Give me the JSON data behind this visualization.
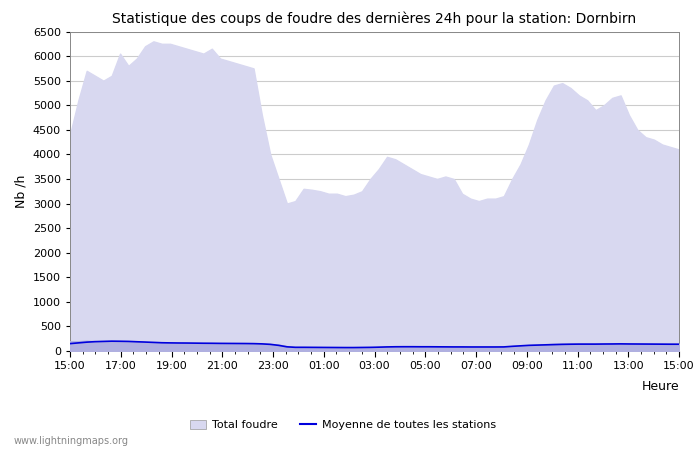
{
  "title": "Statistique des coups de foudre des dernières 24h pour la station: Dornbirn",
  "xlabel": "Heure",
  "ylabel": "Nb /h",
  "ylim": [
    0,
    6500
  ],
  "yticks": [
    0,
    500,
    1000,
    1500,
    2000,
    2500,
    3000,
    3500,
    4000,
    4500,
    5000,
    5500,
    6000,
    6500
  ],
  "xtick_labels": [
    "15:00",
    "17:00",
    "19:00",
    "21:00",
    "23:00",
    "01:00",
    "03:00",
    "05:00",
    "07:00",
    "09:00",
    "11:00",
    "13:00",
    "15:00"
  ],
  "fill_color_total": "#d8d8f0",
  "fill_color_dornbirn": "#b0b0e0",
  "line_color_moyenne": "#0000dd",
  "background_color": "#ffffff",
  "grid_color": "#cccccc",
  "watermark": "www.lightningmaps.org",
  "legend_total": "Total foudre",
  "legend_moyenne": "Moyenne de toutes les stations",
  "total_foudre": [
    4400,
    5100,
    5700,
    5600,
    5500,
    5600,
    6050,
    5800,
    5950,
    6200,
    6300,
    6250,
    6250,
    6200,
    6150,
    6100,
    6050,
    6150,
    5950,
    5900,
    5850,
    5800,
    5750,
    4800,
    4000,
    3500,
    3000,
    3050,
    3300,
    3280,
    3250,
    3200,
    3200,
    3150,
    3180,
    3250,
    3500,
    3700,
    3950,
    3900,
    3800,
    3700,
    3600,
    3550,
    3500,
    3550,
    3500,
    3200,
    3100,
    3050,
    3100,
    3100,
    3150,
    3500,
    3800,
    4200,
    4700,
    5100,
    5400,
    5450,
    5350,
    5200,
    5100,
    4900,
    5000,
    5150,
    5200,
    4800,
    4500,
    4350,
    4300,
    4200,
    4150,
    4100
  ],
  "dornbirn": [
    200,
    200,
    210,
    200,
    200,
    200,
    200,
    195,
    190,
    180,
    170,
    160,
    155,
    155,
    152,
    150,
    150,
    150,
    150,
    150,
    150,
    150,
    150,
    150,
    145,
    130,
    100,
    80,
    80,
    78,
    78,
    75,
    73,
    72,
    70,
    72,
    75,
    80,
    90,
    92,
    90,
    88,
    85,
    85,
    82,
    80,
    80,
    80,
    80,
    80,
    80,
    80,
    80,
    100,
    110,
    120,
    130,
    140,
    148,
    150,
    150,
    150,
    150,
    150,
    150,
    152,
    153,
    150,
    150,
    148,
    147,
    147,
    146,
    145
  ],
  "moyenne": [
    150,
    165,
    180,
    190,
    195,
    200,
    198,
    195,
    188,
    182,
    175,
    168,
    165,
    163,
    162,
    160,
    158,
    157,
    155,
    154,
    153,
    152,
    150,
    145,
    135,
    115,
    85,
    75,
    75,
    74,
    73,
    72,
    71,
    70,
    70,
    72,
    74,
    78,
    83,
    86,
    87,
    87,
    86,
    86,
    85,
    84,
    83,
    83,
    82,
    82,
    82,
    82,
    83,
    95,
    105,
    115,
    120,
    125,
    130,
    135,
    138,
    140,
    140,
    140,
    142,
    143,
    145,
    143,
    142,
    141,
    140,
    139,
    138,
    138
  ]
}
